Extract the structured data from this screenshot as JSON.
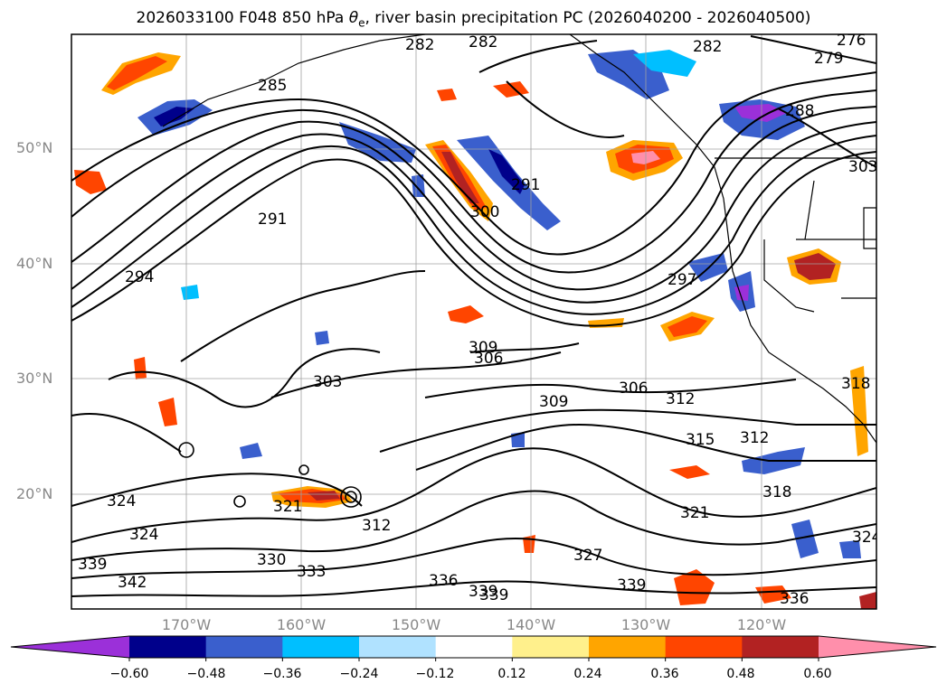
{
  "title_parts": {
    "prefix": "2026033100 F048 850 hPa ",
    "symbol": "θ",
    "subscript": "e",
    "suffix": ", river basin precipitation PC (2026040200 - 2026040500)"
  },
  "map": {
    "projection": "cylindrical lat-lon",
    "lon_range": [
      -180,
      -110
    ],
    "lat_range": [
      10,
      60
    ],
    "gridlines": true,
    "land_color": "#ffffff",
    "coast_color": "#000000"
  },
  "lat_ticks": [
    "50°N",
    "40°N",
    "30°N",
    "20°N"
  ],
  "lon_ticks": [
    "170°W",
    "160°W",
    "150°W",
    "140°W",
    "130°W",
    "120°W"
  ],
  "contour_labels": [
    "282",
    "282",
    "282",
    "276",
    "279",
    "285",
    "288",
    "303",
    "291",
    "291",
    "300",
    "294",
    "297",
    "309",
    "306",
    "303",
    "306",
    "309",
    "312",
    "315",
    "312",
    "318",
    "318",
    "324",
    "321",
    "312",
    "324",
    "330",
    "333",
    "327",
    "321",
    "324",
    "339",
    "342",
    "336",
    "339",
    "339",
    "339",
    "336"
  ],
  "colorbar": {
    "ticks": [
      "−0.60",
      "−0.48",
      "−0.36",
      "−0.24",
      "−0.12",
      "0.12",
      "0.24",
      "0.36",
      "0.48",
      "0.60"
    ],
    "colors": [
      "#9b30d9",
      "#00008b",
      "#3a5fcd",
      "#00bfff",
      "#b0e2ff",
      "#ffffff",
      "#fff08c",
      "#ffa500",
      "#ff4500",
      "#b22222",
      "#ff8fab"
    ],
    "extend": "both"
  }
}
